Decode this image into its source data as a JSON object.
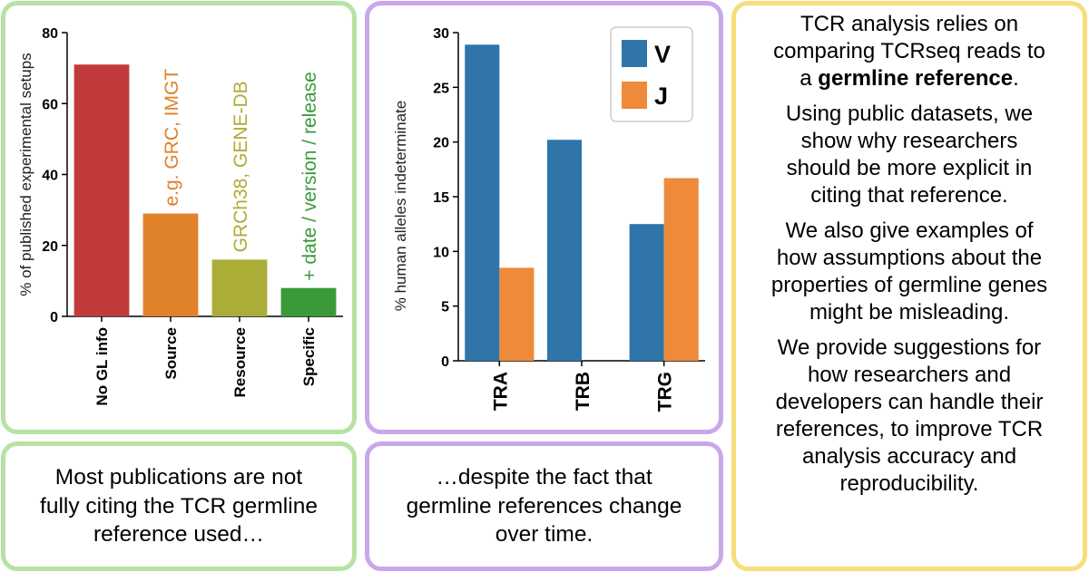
{
  "chart_data": [
    {
      "type": "bar",
      "title": "",
      "xlabel": "",
      "ylabel": "% of published experimental setups",
      "ylim": [
        0,
        80
      ],
      "yticks": [
        0,
        20,
        40,
        60,
        80
      ],
      "categories": [
        "No GL info",
        "Source",
        "Resource",
        "Specific"
      ],
      "values": [
        71,
        29,
        16,
        8
      ],
      "colors": [
        "#c23b3b",
        "#e0822a",
        "#acad36",
        "#3a9a3a"
      ],
      "annotations": [
        {
          "category": "Source",
          "text": "e.g. GRC, IMGT",
          "color": "#e0822a"
        },
        {
          "category": "Resource",
          "text": "GRCh38, GENE-DB",
          "color": "#acad36"
        },
        {
          "category": "Specific",
          "text": "+ date / version / release",
          "color": "#3a9a3a"
        }
      ]
    },
    {
      "type": "bar",
      "title": "",
      "xlabel": "",
      "ylabel": "% human alleles indeterminate",
      "ylim": [
        0,
        30
      ],
      "yticks": [
        0,
        5,
        10,
        15,
        20,
        25,
        30
      ],
      "categories": [
        "TRA",
        "TRB",
        "TRG"
      ],
      "series": [
        {
          "name": "V",
          "values": [
            28.9,
            20.2,
            12.5
          ],
          "color": "#2f75aa"
        },
        {
          "name": "J",
          "values": [
            8.5,
            0,
            16.7
          ],
          "color": "#ee8a3a"
        }
      ],
      "legend": "top-right"
    }
  ],
  "captions": {
    "left": [
      "Most publications are not",
      "fully citing the TCR germline",
      "reference used…"
    ],
    "middle": [
      "…despite the fact that",
      "germline references change",
      "over time."
    ]
  },
  "side_text": {
    "p1_lines": [
      "TCR analysis relies on",
      "comparing TCRseq reads to"
    ],
    "p1_last_pre": "a ",
    "p1_bold": "germline reference",
    "p1_last_post": ".",
    "p2_lines": [
      "Using public datasets, we",
      "show why researchers",
      "should be more explicit in",
      "citing that reference."
    ],
    "p3_lines": [
      "We also give examples of",
      "how assumptions about the",
      "properties of germline genes",
      "might be misleading."
    ],
    "p4_lines": [
      "We provide suggestions for",
      "how researchers and",
      "developers can handle their",
      "references, to improve TCR",
      "analysis accuracy and",
      "reproducibility."
    ]
  },
  "colors": {
    "green_border": "#b6e3a4",
    "purple_border": "#c9a8ea",
    "yellow_border": "#f6df7a"
  }
}
